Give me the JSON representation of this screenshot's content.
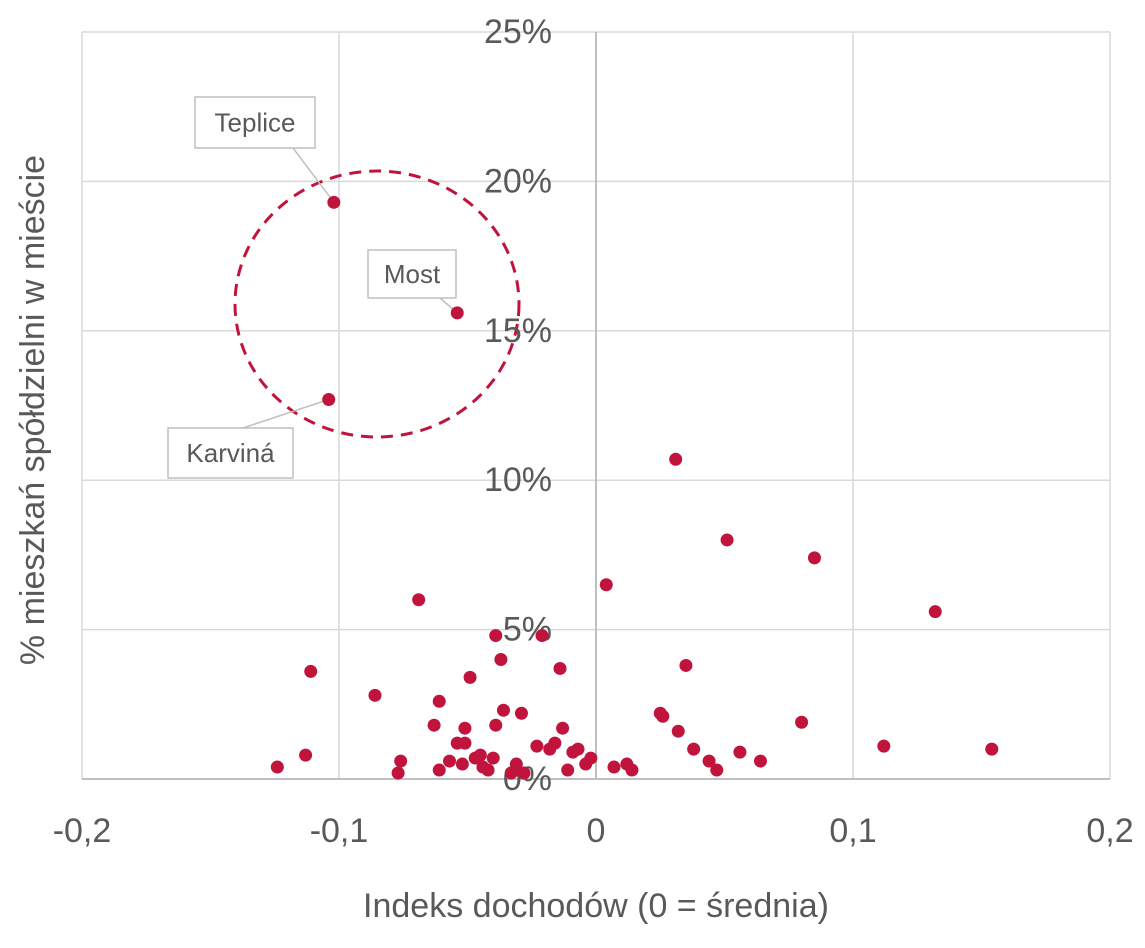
{
  "chart_data": {
    "type": "scatter",
    "x_label": "Indeks dochodów (0 = średnia)",
    "y_label": "% mieszkań spółdzielni w mieście",
    "color": "#c0143c",
    "grid": true,
    "xlim": [
      -0.2,
      0.2
    ],
    "ylim": [
      0,
      25
    ],
    "xticks": [
      {
        "value": -0.2,
        "label": "-0,2"
      },
      {
        "value": -0.1,
        "label": "-0,1"
      },
      0,
      {
        "value": 0.1,
        "label": "0,1"
      },
      {
        "value": 0.2,
        "label": "0,2"
      }
    ],
    "yticks": [
      {
        "value": 0,
        "label": "0%"
      },
      {
        "value": 5,
        "label": "5%"
      },
      {
        "value": 10,
        "label": "10%"
      },
      {
        "value": 15,
        "label": "15%"
      },
      {
        "value": 20,
        "label": "20%"
      },
      {
        "value": 25,
        "label": "25%"
      }
    ],
    "annotations": [
      "Teplice",
      "Most",
      "Karviná"
    ],
    "x": [
      -0.102,
      -0.054,
      -0.104,
      0.031,
      0.051,
      0.085,
      0.004,
      -0.069,
      0.132,
      -0.039,
      -0.021,
      -0.037,
      -0.111,
      -0.014,
      0.035,
      -0.049,
      -0.086,
      -0.061,
      -0.036,
      -0.029,
      0.025,
      0.026,
      -0.063,
      -0.039,
      0.08,
      -0.051,
      -0.013,
      0.032,
      -0.054,
      -0.051,
      -0.016,
      -0.023,
      -0.018,
      0.112,
      0.154,
      -0.007,
      -0.009,
      0.038,
      0.056,
      -0.113,
      -0.045,
      -0.047,
      -0.04,
      -0.002,
      -0.076,
      -0.057,
      0.044,
      0.064,
      -0.052,
      -0.031,
      -0.004,
      -0.124,
      -0.044,
      0.007,
      0.012,
      -0.042,
      -0.031,
      -0.011,
      0.047,
      -0.077,
      -0.061,
      0.014,
      -0.033,
      -0.028
    ],
    "values": [
      19.3,
      15.6,
      12.7,
      10.7,
      8.0,
      7.4,
      6.5,
      6.0,
      5.6,
      4.8,
      4.8,
      4.0,
      3.6,
      3.7,
      3.8,
      3.4,
      2.8,
      2.6,
      2.3,
      2.2,
      2.2,
      2.1,
      1.8,
      1.8,
      1.9,
      1.7,
      1.7,
      1.6,
      1.2,
      1.2,
      1.2,
      1.1,
      1.0,
      1.1,
      1.0,
      1.0,
      0.9,
      1.0,
      0.9,
      0.8,
      0.8,
      0.7,
      0.7,
      0.7,
      0.6,
      0.6,
      0.6,
      0.6,
      0.5,
      0.5,
      0.5,
      0.4,
      0.4,
      0.4,
      0.5,
      0.3,
      0.3,
      0.3,
      0.3,
      0.2,
      0.3,
      0.3,
      0.2,
      0.2
    ]
  }
}
